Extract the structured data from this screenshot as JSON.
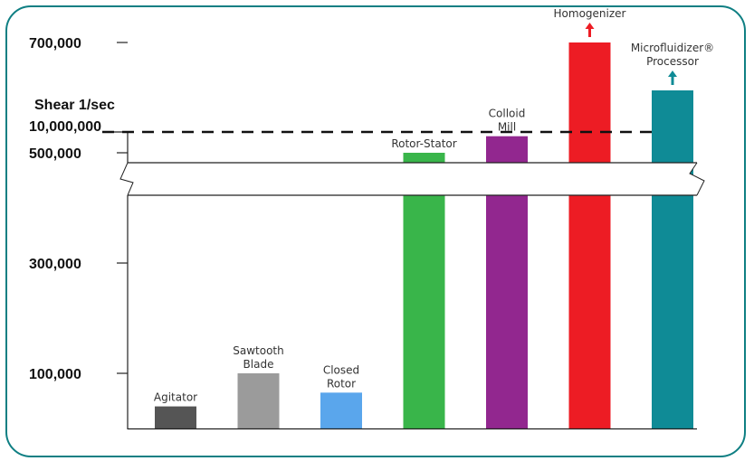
{
  "chart_data": {
    "type": "bar",
    "ylabel": "Shear 1/sec",
    "y_ticks": [
      "100,000",
      "300,000",
      "500,000",
      "700,000"
    ],
    "break_tick": "10,000,000",
    "ylim": [
      0,
      800000
    ],
    "axis_break": true,
    "categories": [
      {
        "label_lines": [
          "Agitator"
        ],
        "value": 40000,
        "color": "#555555",
        "arrow": false
      },
      {
        "label_lines": [
          "Sawtooth",
          "Blade"
        ],
        "value": 100000,
        "color": "#9b9b9b",
        "arrow": false
      },
      {
        "label_lines": [
          "Closed",
          "Rotor"
        ],
        "value": 65000,
        "color": "#5aa6ec",
        "arrow": false
      },
      {
        "label_lines": [
          "Rotor-Stator"
        ],
        "value": 500000,
        "color": "#39b54a",
        "arrow": false
      },
      {
        "label_lines": [
          "Colloid",
          "Mill"
        ],
        "value": 530000,
        "color": "#92278f",
        "arrow": false
      },
      {
        "label_lines": [
          "Homogenizer"
        ],
        "value": 700000,
        "color": "#ed1c24",
        "arrow": true
      },
      {
        "label_lines": [
          "Microfluidizer®",
          "Processor"
        ],
        "value": 10000000,
        "color": "#0f8b96",
        "arrow": true,
        "exceeds_break": true
      }
    ]
  }
}
